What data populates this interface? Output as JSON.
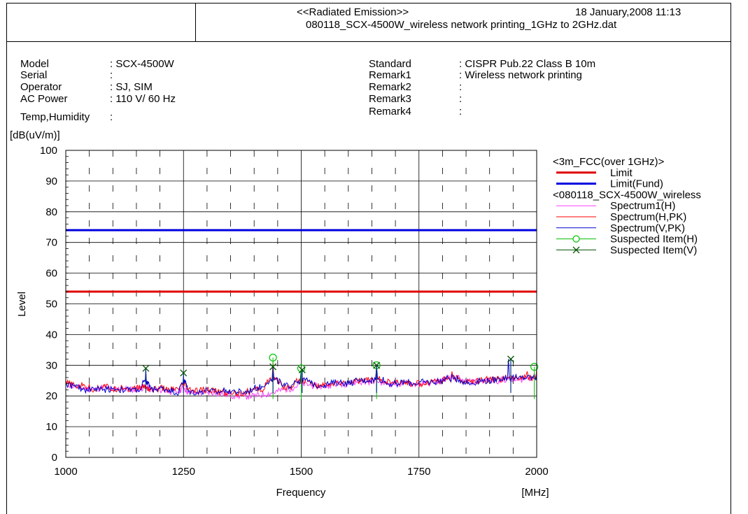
{
  "header": {
    "title": "<<Radiated Emission>>",
    "datetime": "18 January,2008 11:13",
    "filename": "080118_SCX-4500W_wireless network printing_1GHz to 2GHz.dat"
  },
  "meta_left": [
    {
      "label": "Model",
      "value": ": SCX-4500W"
    },
    {
      "label": "Serial",
      "value": ":"
    },
    {
      "label": "Operator",
      "value": ": SJ, SIM"
    },
    {
      "label": "AC Power",
      "value": ": 110 V/ 60 Hz"
    },
    {
      "label": "Temp,Humidity",
      "value": ":"
    }
  ],
  "meta_right": [
    {
      "label": "Standard",
      "value": ": CISPR Pub.22 Class B 10m"
    },
    {
      "label": "Remark1",
      "value": ": Wireless network printing"
    },
    {
      "label": "Remark2",
      "value": ":"
    },
    {
      "label": "Remark3",
      "value": ":"
    },
    {
      "label": "Remark4",
      "value": ":"
    }
  ],
  "chart_data": {
    "type": "line",
    "ylabel": "Level",
    "yunit": "[dB(uV/m)]",
    "xlabel": "Frequency",
    "xunit": "[MHz]",
    "xlim": [
      1000,
      2000
    ],
    "ylim": [
      0,
      100
    ],
    "x_ticks": [
      1000,
      1250,
      1500,
      1750,
      2000
    ],
    "y_ticks": [
      0,
      10,
      20,
      30,
      40,
      50,
      60,
      70,
      80,
      90,
      100
    ],
    "grid": true,
    "legend_position": "right",
    "legend": [
      {
        "text": "<3m_FCC(over 1GHz)>",
        "kind": "header"
      },
      {
        "text": "Limit",
        "kind": "line",
        "color": "#e00000",
        "width": 3
      },
      {
        "text": "Limit(Fund)",
        "kind": "line",
        "color": "#0000e0",
        "width": 3
      },
      {
        "text": "<080118_SCX-4500W_wireless",
        "kind": "header"
      },
      {
        "text": "Spectrum1(H)",
        "kind": "line",
        "color": "#ff40ff",
        "width": 1
      },
      {
        "text": "Spectrum(H,PK)",
        "kind": "line",
        "color": "#ff0000",
        "width": 1
      },
      {
        "text": "Spectrum(V,PK)",
        "kind": "line",
        "color": "#0000cc",
        "width": 1
      },
      {
        "text": "Suspected Item(H)",
        "kind": "circle",
        "color": "#00c000",
        "width": 1
      },
      {
        "text": "Suspected Item(V)",
        "kind": "cross",
        "color": "#005000",
        "width": 1
      }
    ],
    "limits": [
      {
        "name": "Limit",
        "y": 54,
        "color": "#e00000"
      },
      {
        "name": "Limit(Fund)",
        "y": 74,
        "color": "#0000e0"
      }
    ],
    "series": [
      {
        "name": "Spectrum1(H)",
        "color": "#ff40ff",
        "x": [
          1000,
          1020,
          1040,
          1060,
          1080,
          1100,
          1120,
          1140,
          1160,
          1170,
          1180,
          1200,
          1220,
          1240,
          1250,
          1260,
          1280,
          1300,
          1320,
          1340,
          1360,
          1380,
          1400,
          1420,
          1440,
          1460,
          1480,
          1500,
          1520,
          1540,
          1560,
          1580,
          1600,
          1620,
          1640,
          1660,
          1680,
          1700,
          1720,
          1740,
          1760,
          1780,
          1800,
          1820,
          1840,
          1860,
          1880,
          1900,
          1920,
          1940,
          1960,
          1980,
          2000
        ],
        "y": [
          24,
          23,
          22.5,
          22,
          23,
          22,
          22.5,
          22,
          22.5,
          23,
          22,
          22,
          21.5,
          21.5,
          23,
          21,
          21,
          21,
          21,
          20.5,
          20,
          20,
          20,
          20.5,
          21,
          22,
          22.5,
          24,
          23.5,
          23,
          23.5,
          24,
          24,
          24.5,
          24.5,
          25,
          24,
          24,
          24,
          24,
          24,
          24.5,
          25,
          27.5,
          25,
          24.5,
          25,
          25,
          25,
          25.5,
          25,
          26,
          26
        ]
      },
      {
        "name": "Spectrum(H,PK)",
        "color": "#ff0000",
        "x": [
          1000,
          1020,
          1040,
          1060,
          1080,
          1100,
          1120,
          1140,
          1160,
          1170,
          1180,
          1200,
          1220,
          1240,
          1250,
          1260,
          1280,
          1300,
          1320,
          1340,
          1360,
          1380,
          1400,
          1420,
          1440,
          1460,
          1480,
          1500,
          1520,
          1540,
          1560,
          1580,
          1600,
          1620,
          1640,
          1660,
          1680,
          1700,
          1720,
          1740,
          1760,
          1780,
          1800,
          1820,
          1840,
          1860,
          1880,
          1900,
          1920,
          1940,
          1960,
          1980,
          2000
        ],
        "y": [
          25,
          23,
          23.5,
          22,
          23.5,
          22,
          23,
          22,
          23,
          23,
          22,
          22.5,
          22,
          22,
          24,
          22,
          21.5,
          22,
          21.5,
          21,
          21,
          21,
          22,
          22,
          31,
          23,
          23,
          28,
          24,
          23,
          24,
          24,
          24.5,
          25,
          25,
          29,
          24.5,
          24,
          24.5,
          24,
          24,
          25,
          25,
          28,
          25,
          24.5,
          25,
          25.5,
          25.5,
          26,
          25.5,
          28,
          29
        ]
      },
      {
        "name": "Spectrum(V,PK)",
        "color": "#0000cc",
        "x": [
          1000,
          1020,
          1040,
          1060,
          1080,
          1100,
          1120,
          1140,
          1160,
          1170,
          1180,
          1200,
          1220,
          1240,
          1250,
          1260,
          1280,
          1300,
          1320,
          1340,
          1360,
          1380,
          1400,
          1420,
          1440,
          1460,
          1480,
          1500,
          1520,
          1540,
          1560,
          1580,
          1600,
          1620,
          1640,
          1660,
          1680,
          1700,
          1720,
          1740,
          1760,
          1780,
          1800,
          1820,
          1840,
          1860,
          1880,
          1900,
          1920,
          1940,
          1960,
          1980,
          2000
        ],
        "y": [
          24,
          23,
          22,
          22.5,
          22,
          22.5,
          22,
          22,
          22,
          29,
          22,
          22.5,
          22,
          21,
          27,
          21.5,
          21,
          22,
          21,
          22,
          21.5,
          21,
          22.5,
          23,
          29,
          23,
          23.5,
          29,
          24,
          23.5,
          24,
          24.5,
          24,
          25,
          25,
          30,
          24,
          24,
          24.5,
          24,
          24.5,
          24.5,
          25,
          27,
          25,
          24,
          25,
          25,
          25.5,
          32,
          25.5,
          26.5,
          27
        ]
      }
    ],
    "suspected_h": [
      {
        "x": 1440,
        "y": 32.5
      },
      {
        "x": 1500,
        "y": 29
      },
      {
        "x": 1660,
        "y": 30
      },
      {
        "x": 1995,
        "y": 29.5
      }
    ],
    "suspected_v": [
      {
        "x": 1170,
        "y": 29
      },
      {
        "x": 1250,
        "y": 27.5
      },
      {
        "x": 1440,
        "y": 29.5
      },
      {
        "x": 1502,
        "y": 28.5
      },
      {
        "x": 1660,
        "y": 30
      },
      {
        "x": 1945,
        "y": 32
      }
    ]
  }
}
